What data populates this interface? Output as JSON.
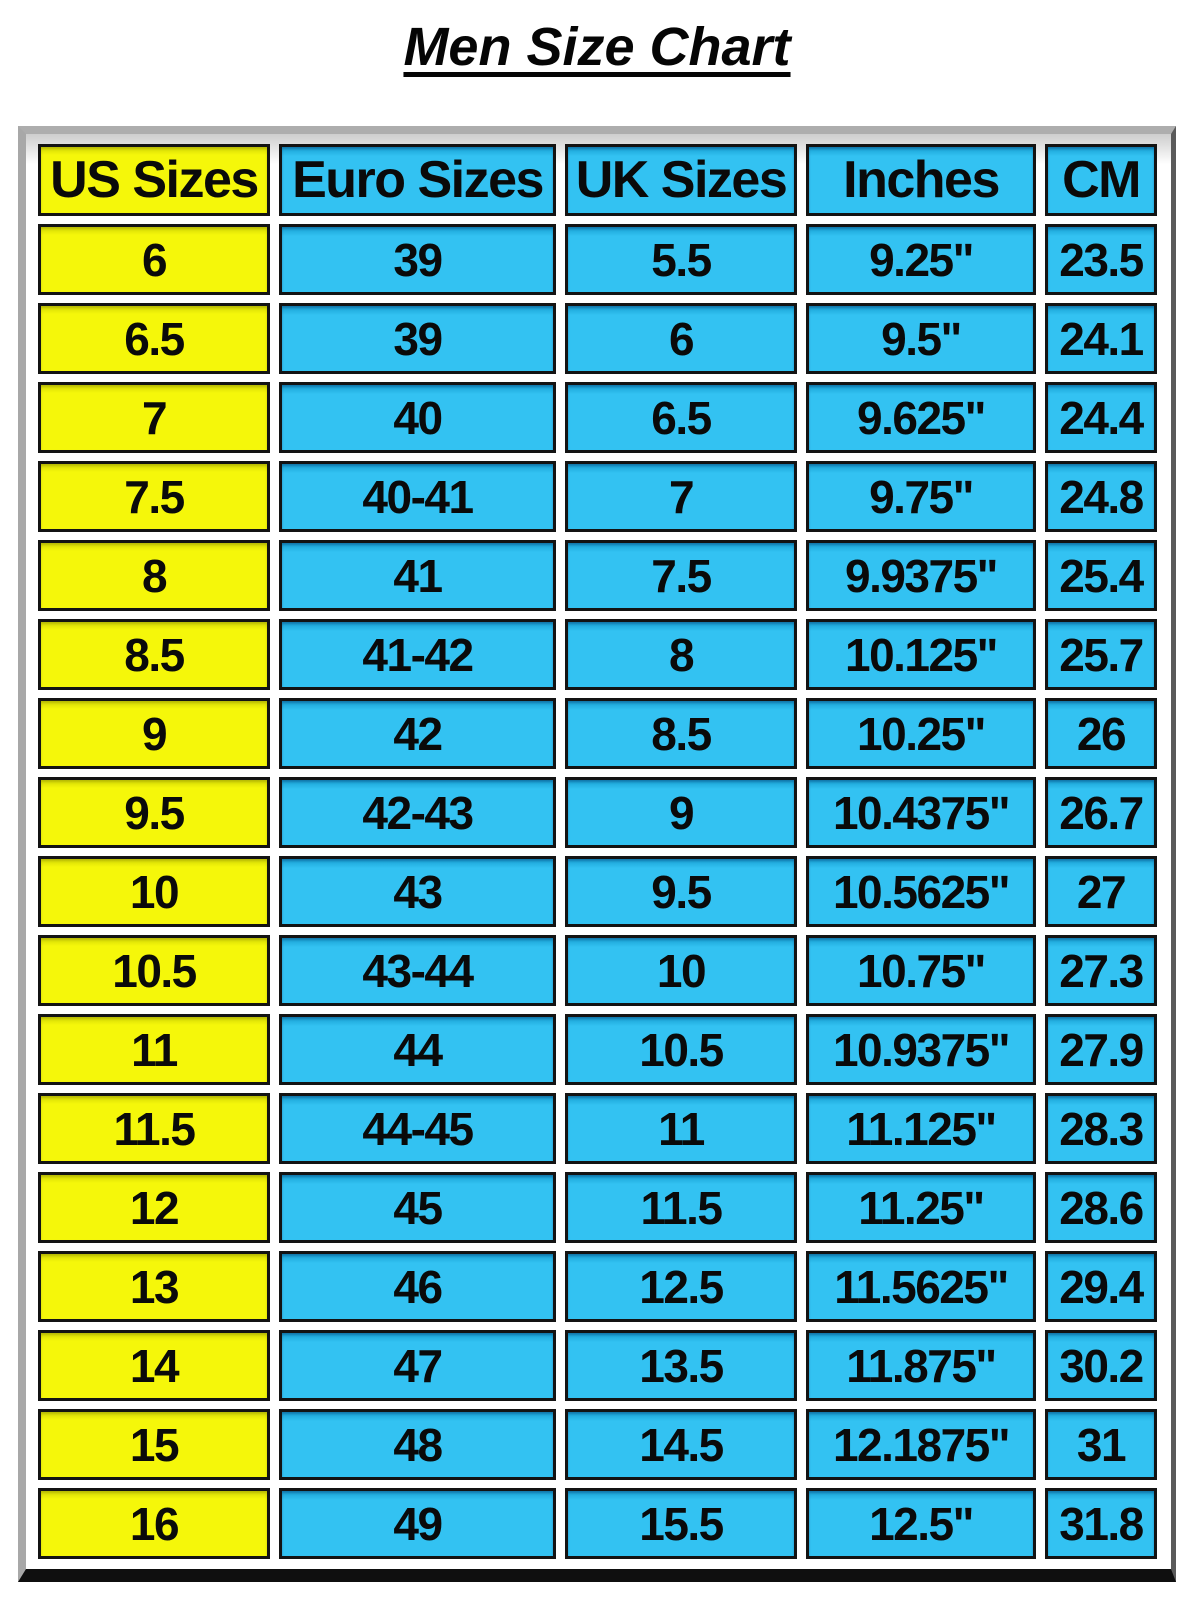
{
  "title": "Men Size Chart",
  "colors": {
    "us_column_bg": "#f5f70a",
    "other_columns_bg": "#33c2f2",
    "cell_border": "#131313",
    "frame_gray": "#a8a8a8",
    "frame_bottom_black": "#0f0f0f",
    "text": "#0a0a0a",
    "background": "#ffffff"
  },
  "chart_data": {
    "type": "table",
    "title": "Men Size Chart",
    "columns": [
      "US Sizes",
      "Euro Sizes",
      "UK Sizes",
      "Inches",
      "CM"
    ],
    "rows": [
      [
        "6",
        "39",
        "5.5",
        "9.25\"",
        "23.5"
      ],
      [
        "6.5",
        "39",
        "6",
        "9.5\"",
        "24.1"
      ],
      [
        "7",
        "40",
        "6.5",
        "9.625\"",
        "24.4"
      ],
      [
        "7.5",
        "40-41",
        "7",
        "9.75\"",
        "24.8"
      ],
      [
        "8",
        "41",
        "7.5",
        "9.9375\"",
        "25.4"
      ],
      [
        "8.5",
        "41-42",
        "8",
        "10.125\"",
        "25.7"
      ],
      [
        "9",
        "42",
        "8.5",
        "10.25\"",
        "26"
      ],
      [
        "9.5",
        "42-43",
        "9",
        "10.4375\"",
        "26.7"
      ],
      [
        "10",
        "43",
        "9.5",
        "10.5625\"",
        "27"
      ],
      [
        "10.5",
        "43-44",
        "10",
        "10.75\"",
        "27.3"
      ],
      [
        "11",
        "44",
        "10.5",
        "10.9375\"",
        "27.9"
      ],
      [
        "11.5",
        "44-45",
        "11",
        "11.125\"",
        "28.3"
      ],
      [
        "12",
        "45",
        "11.5",
        "11.25\"",
        "28.6"
      ],
      [
        "13",
        "46",
        "12.5",
        "11.5625\"",
        "29.4"
      ],
      [
        "14",
        "47",
        "13.5",
        "11.875\"",
        "30.2"
      ],
      [
        "15",
        "48",
        "14.5",
        "12.1875\"",
        "31"
      ],
      [
        "16",
        "49",
        "15.5",
        "12.5\"",
        "31.8"
      ]
    ]
  }
}
